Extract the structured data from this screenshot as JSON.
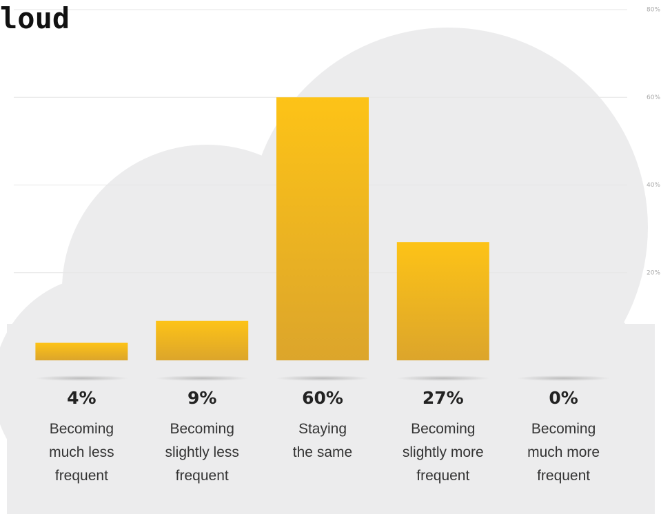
{
  "chart_data": {
    "type": "bar",
    "title": "loud",
    "categories": [
      "Becoming\nmuch less\nfrequent",
      "Becoming\nslightly less\nfrequent",
      "Staying\nthe same",
      "Becoming\nslightly more\nfrequent",
      "Becoming\nmuch more\nfrequent"
    ],
    "values": [
      4,
      9,
      60,
      27,
      0
    ],
    "value_labels": [
      "4%",
      "9%",
      "60%",
      "27%",
      "0%"
    ],
    "color": "#fdc317",
    "ylim": [
      0,
      80
    ],
    "yticks": [
      {
        "value": 20,
        "label": "20%"
      },
      {
        "value": 40,
        "label": "40%"
      },
      {
        "value": 60,
        "label": "60%"
      },
      {
        "value": 80,
        "label": "80%"
      }
    ],
    "grid": true
  }
}
